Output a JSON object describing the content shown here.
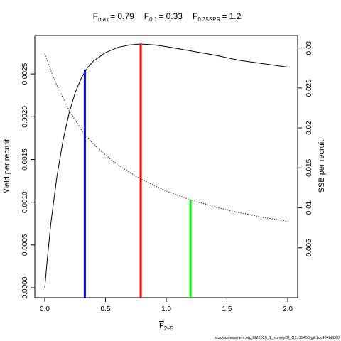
{
  "chart_data": {
    "type": "line",
    "title_parts": {
      "fmax": {
        "symbol": "F",
        "sub": "max",
        "value": "= 0.79"
      },
      "f01": {
        "symbol": "F",
        "sub": "0.1",
        "value": "= 0.33"
      },
      "f035": {
        "symbol": "F",
        "sub": "0.35SPR",
        "value": "= 1.2"
      }
    },
    "xlabel": {
      "symbol": "F",
      "sub": "2–5"
    },
    "ylabel_left": "Yield per recruit",
    "ylabel_right": "SSB per recruit",
    "xlim": [
      0,
      2
    ],
    "ylim_left": [
      0,
      0.00285
    ],
    "ylim_right": [
      0,
      0.0305
    ],
    "x_ticks": [
      {
        "value": 0,
        "label": "0.0"
      },
      {
        "value": 0.5,
        "label": "0.5"
      },
      {
        "value": 1.0,
        "label": "1.0"
      },
      {
        "value": 1.5,
        "label": "1.5"
      },
      {
        "value": 2.0,
        "label": "2.0"
      }
    ],
    "y_ticks_left": [
      {
        "value": 0,
        "label": "0.0000"
      },
      {
        "value": 0.0005,
        "label": "0.0005"
      },
      {
        "value": 0.001,
        "label": "0.0010"
      },
      {
        "value": 0.0015,
        "label": "0.0015"
      },
      {
        "value": 0.002,
        "label": "0.0020"
      },
      {
        "value": 0.0025,
        "label": "0.0025"
      }
    ],
    "y_ticks_right": [
      {
        "value": 0.005,
        "label": "0.005"
      },
      {
        "value": 0.01,
        "label": "0.01"
      },
      {
        "value": 0.015,
        "label": "0.015"
      },
      {
        "value": 0.02,
        "label": "0.02"
      },
      {
        "value": 0.025,
        "label": "0.025"
      },
      {
        "value": 0.03,
        "label": "0.03"
      }
    ],
    "series": [
      {
        "axis": "left",
        "style": "solid",
        "color": "#000000",
        "x": [
          0,
          0.02,
          0.05,
          0.1,
          0.15,
          0.2,
          0.25,
          0.3,
          0.35,
          0.4,
          0.5,
          0.6,
          0.7,
          0.79,
          0.9,
          1.0,
          1.2,
          1.4,
          1.6,
          1.8,
          2.0
        ],
        "y": [
          0,
          0.00032,
          0.00075,
          0.0013,
          0.00172,
          0.00204,
          0.00228,
          0.00245,
          0.00257,
          0.00265,
          0.00275,
          0.00281,
          0.00284,
          0.00285,
          0.00284,
          0.00282,
          0.00277,
          0.00272,
          0.00266,
          0.00262,
          0.00258
        ]
      },
      {
        "axis": "right",
        "style": "dotted",
        "color": "#000000",
        "x": [
          0,
          0.05,
          0.1,
          0.2,
          0.3,
          0.33,
          0.4,
          0.5,
          0.6,
          0.79,
          1.0,
          1.2,
          1.4,
          1.6,
          1.8,
          2.0
        ],
        "y": [
          0.0293,
          0.0272,
          0.0253,
          0.0222,
          0.0198,
          0.0192,
          0.018,
          0.0166,
          0.0154,
          0.0136,
          0.0121,
          0.011,
          0.0101,
          0.0094,
          0.0088,
          0.0083
        ]
      }
    ],
    "reference_lines": [
      {
        "name": "F0.1",
        "x": 0.33,
        "y_top": 0.00255,
        "axis": "left",
        "color": "#0000ff"
      },
      {
        "name": "Fmax",
        "x": 0.79,
        "y_top": 0.00285,
        "axis": "left",
        "color": "#ff0000"
      },
      {
        "name": "F0.35SPR",
        "x": 1.2,
        "y_top": 0.011,
        "axis": "right",
        "color": "#00ff00"
      }
    ],
    "grid": false
  },
  "footer": "stockassessment.org,BM2026_1_surveyOI_Q3,r19456,git:1cc464b8060"
}
